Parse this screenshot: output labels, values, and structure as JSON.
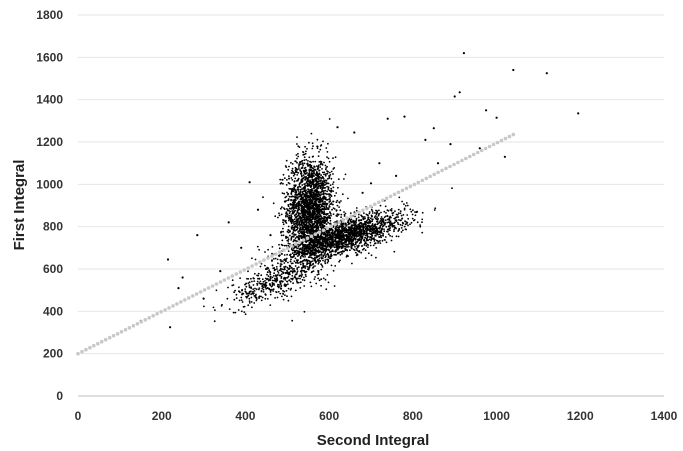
{
  "chart_data": {
    "type": "scatter",
    "xlabel": "Second Integral",
    "ylabel": "First Integral",
    "xlim": [
      0,
      1400
    ],
    "ylim": [
      0,
      1800
    ],
    "x_ticks": [
      0,
      200,
      400,
      600,
      800,
      1000,
      1200,
      1400
    ],
    "y_ticks": [
      0,
      200,
      400,
      600,
      800,
      1000,
      1200,
      1400,
      1600,
      1800
    ],
    "grid": "horizontal",
    "legend": "none",
    "colors": {
      "points": "#000000",
      "trend": "#c8c8c8",
      "grid": "#e6e6e6"
    },
    "trendline": {
      "x": [
        0,
        1040
      ],
      "y": [
        200,
        1235
      ]
    },
    "clusters": [
      {
        "name": "vertical lobe",
        "center": [
          555,
          880
        ],
        "spread": [
          28,
          125
        ],
        "count": 2200
      },
      {
        "name": "diagonal lobe",
        "center": [
          640,
          755
        ],
        "spread": [
          70,
          40
        ],
        "count": 1700
      },
      {
        "name": "lower band",
        "center": [
          470,
          540
        ],
        "spread": [
          55,
          40
        ],
        "count": 420
      }
    ],
    "outliers": [
      {
        "x": 922,
        "y": 1620
      },
      {
        "x": 1040,
        "y": 1540
      },
      {
        "x": 1120,
        "y": 1525
      },
      {
        "x": 1195,
        "y": 1335
      },
      {
        "x": 900,
        "y": 1415
      },
      {
        "x": 912,
        "y": 1435
      },
      {
        "x": 975,
        "y": 1350
      },
      {
        "x": 1000,
        "y": 1315
      },
      {
        "x": 850,
        "y": 1265
      },
      {
        "x": 780,
        "y": 1320
      },
      {
        "x": 830,
        "y": 1210
      },
      {
        "x": 890,
        "y": 1190
      },
      {
        "x": 960,
        "y": 1170
      },
      {
        "x": 1020,
        "y": 1130
      },
      {
        "x": 860,
        "y": 1100
      },
      {
        "x": 810,
        "y": 870
      },
      {
        "x": 150,
        "y": 355
      },
      {
        "x": 220,
        "y": 325
      },
      {
        "x": 215,
        "y": 645
      },
      {
        "x": 240,
        "y": 510
      },
      {
        "x": 285,
        "y": 760
      },
      {
        "x": 360,
        "y": 820
      },
      {
        "x": 410,
        "y": 1010
      },
      {
        "x": 300,
        "y": 460
      },
      {
        "x": 340,
        "y": 590
      },
      {
        "x": 620,
        "y": 1270
      },
      {
        "x": 660,
        "y": 1245
      },
      {
        "x": 740,
        "y": 1310
      },
      {
        "x": 720,
        "y": 1100
      },
      {
        "x": 700,
        "y": 1005
      },
      {
        "x": 760,
        "y": 1040
      },
      {
        "x": 680,
        "y": 960
      },
      {
        "x": 430,
        "y": 880
      },
      {
        "x": 390,
        "y": 700
      },
      {
        "x": 460,
        "y": 760
      },
      {
        "x": 250,
        "y": 560
      }
    ]
  }
}
